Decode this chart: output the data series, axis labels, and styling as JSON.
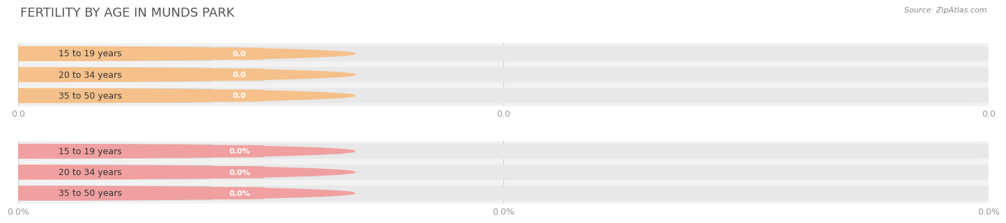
{
  "title": "FERTILITY BY AGE IN MUNDS PARK",
  "source": "Source: ZipAtlas.com",
  "categories": [
    "15 to 19 years",
    "20 to 34 years",
    "35 to 50 years"
  ],
  "labels_top": [
    "0.0",
    "0.0",
    "0.0"
  ],
  "labels_bottom": [
    "0.0%",
    "0.0%",
    "0.0%"
  ],
  "bar_color_top": "#f5c08a",
  "bar_color_bottom": "#f0a0a0",
  "bar_bg_color": "#e8e8e8",
  "background_color": "#ffffff",
  "chart_bg_color": "#f2f2f2",
  "xticks": [
    0.0,
    0.5,
    1.0
  ],
  "xtick_labels_top": [
    "0.0",
    "0.0",
    "0.0"
  ],
  "xtick_labels_bottom": [
    "0.0%",
    "0.0%",
    "0.0%"
  ],
  "title_fontsize": 13,
  "tick_fontsize": 9,
  "label_fontsize": 8,
  "cat_fontsize": 9,
  "source_fontsize": 8
}
